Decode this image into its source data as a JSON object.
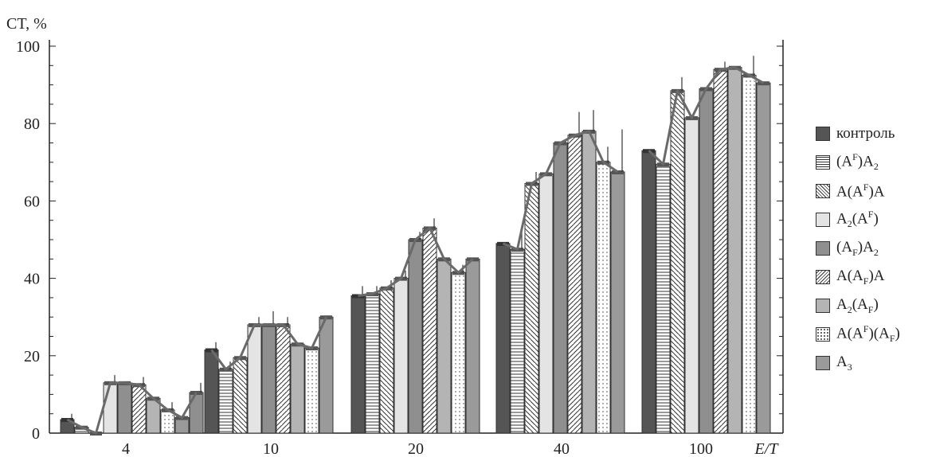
{
  "chart_data": {
    "type": "bar",
    "ylabel": "CT, %",
    "xlabel": "E/T",
    "categories": [
      "4",
      "10",
      "20",
      "40",
      "100"
    ],
    "ylim": [
      0,
      100
    ],
    "yticks": [
      0,
      20,
      40,
      60,
      80,
      100
    ],
    "grid": false,
    "legend_position": "right",
    "series": [
      {
        "name": "контроль",
        "label_parts": [
          [
            "t",
            "контроль"
          ]
        ],
        "pattern": "solid-dark",
        "values": [
          3.5,
          21.5,
          35.5,
          49,
          73
        ],
        "errors": [
          1.5,
          2,
          2.5,
          0,
          0
        ]
      },
      {
        "name": "(A^F)A2",
        "label_parts": [
          [
            "t",
            "(A"
          ],
          [
            "sup",
            "F"
          ],
          [
            "t",
            ")A"
          ],
          [
            "sub",
            "2"
          ]
        ],
        "pattern": "hlines",
        "values": [
          1.5,
          16.5,
          36,
          47.5,
          69.5
        ],
        "errors": [
          0,
          2,
          2,
          6,
          0
        ]
      },
      {
        "name": "A(A^F)A",
        "label_parts": [
          [
            "t",
            "A(A"
          ],
          [
            "sup",
            "F"
          ],
          [
            "t",
            ")A"
          ]
        ],
        "pattern": "diag-back",
        "values": [
          0,
          19.5,
          37.5,
          64.5,
          88.5
        ],
        "errors": [
          0,
          0,
          2,
          3,
          3.5
        ]
      },
      {
        "name": "A2(A^F)",
        "label_parts": [
          [
            "t",
            "A"
          ],
          [
            "sub",
            "2"
          ],
          [
            "t",
            "(A"
          ],
          [
            "sup",
            "F"
          ],
          [
            "t",
            ")"
          ]
        ],
        "pattern": "light",
        "values": [
          13,
          28,
          40,
          67,
          81.5
        ],
        "errors": [
          2,
          2,
          2,
          0,
          0
        ]
      },
      {
        "name": "(A_F)A2",
        "label_parts": [
          [
            "t",
            "(A"
          ],
          [
            "sub",
            "F"
          ],
          [
            "t",
            ")A"
          ],
          [
            "sub",
            "2"
          ]
        ],
        "pattern": "solid-mid",
        "values": [
          13,
          28,
          50,
          75,
          89
        ],
        "errors": [
          0,
          3.5,
          2,
          0,
          0
        ]
      },
      {
        "name": "A(A_F)A",
        "label_parts": [
          [
            "t",
            "A(A"
          ],
          [
            "sub",
            "F"
          ],
          [
            "t",
            ")A"
          ]
        ],
        "pattern": "diag-fwd",
        "values": [
          12.5,
          28,
          53,
          77,
          94
        ],
        "errors": [
          2,
          2,
          2.5,
          6,
          2
        ]
      },
      {
        "name": "A2(A_F)",
        "label_parts": [
          [
            "t",
            "A"
          ],
          [
            "sub",
            "2"
          ],
          [
            "t",
            "(A"
          ],
          [
            "sub",
            "F"
          ],
          [
            "t",
            ")"
          ]
        ],
        "pattern": "solid-light",
        "values": [
          9,
          23,
          45,
          78,
          94.5
        ],
        "errors": [
          0,
          0,
          0,
          5.5,
          0
        ]
      },
      {
        "name": "A(A^F)(A_F)",
        "label_parts": [
          [
            "t",
            "A(A"
          ],
          [
            "sup",
            "F"
          ],
          [
            "t",
            ")(A"
          ],
          [
            "sub",
            "F"
          ],
          [
            "t",
            ")"
          ]
        ],
        "pattern": "dots",
        "values": [
          6,
          22,
          41.5,
          70,
          92.5
        ],
        "errors": [
          2,
          0,
          2,
          4,
          5
        ]
      },
      {
        "name": "A3",
        "label_parts": [
          [
            "t",
            "A"
          ],
          [
            "sub",
            "3"
          ]
        ],
        "pattern": "solid-mid2",
        "values": [
          4,
          30,
          45,
          67.5,
          90.5
        ],
        "errors": [
          0,
          0,
          0,
          11,
          0
        ]
      },
      {
        "name": "",
        "label_parts": [],
        "pattern": "solid-mid",
        "values": [
          10.5,
          null,
          null,
          null,
          null
        ],
        "errors": [
          2.5,
          0,
          0,
          0,
          0
        ]
      }
    ]
  }
}
